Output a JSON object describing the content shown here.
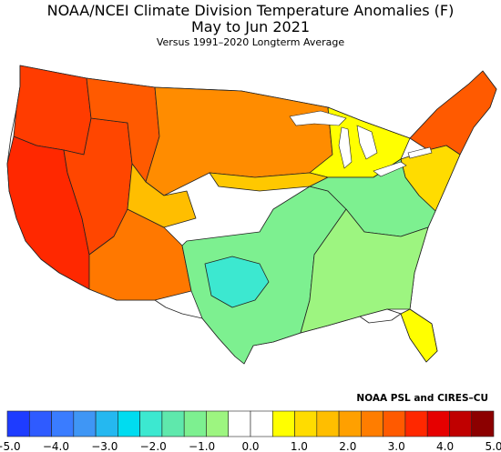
{
  "title": "NOAA/NCEI Climate Division Temperature Anomalies (F)",
  "period": "May to Jun 2021",
  "baseline": "Versus 1991–2020 Longterm Average",
  "credit": "NOAA PSL and CIRES–CU",
  "colorbar": {
    "min": -5.0,
    "max": 5.0,
    "step": 0.5,
    "tick_labels": [
      "−5.0",
      "−4.0",
      "−3.0",
      "−2.0",
      "−1.0",
      "0.0",
      "1.0",
      "2.0",
      "3.0",
      "4.0",
      "5.0"
    ],
    "colors": [
      "#1e3cff",
      "#2f5bff",
      "#3a7cff",
      "#3f96f5",
      "#25b8f0",
      "#00dcf0",
      "#3ce8d0",
      "#5fe8ac",
      "#7df090",
      "#9df580",
      "#ffffff",
      "#ffffff",
      "#ffff00",
      "#ffdc00",
      "#ffbe00",
      "#ffa000",
      "#ff7d00",
      "#ff5a00",
      "#ff2800",
      "#e60000",
      "#c00000",
      "#8c0000"
    ]
  },
  "regions": [
    {
      "name": "pacific-northwest",
      "anomaly": 4.0,
      "color": "#ff3c00"
    },
    {
      "name": "far-west",
      "anomaly": 4.0,
      "color": "#ff2800"
    },
    {
      "name": "great-basin",
      "anomaly": 3.5,
      "color": "#ff4600"
    },
    {
      "name": "northern-rockies",
      "anomaly": 3.0,
      "color": "#ff5a00"
    },
    {
      "name": "northern-plains",
      "anomaly": 2.0,
      "color": "#ff8c00"
    },
    {
      "name": "desert-southwest",
      "anomaly": 2.5,
      "color": "#ff7800"
    },
    {
      "name": "southern-rockies",
      "anomaly": 1.5,
      "color": "#ffbe00"
    },
    {
      "name": "upper-midwest",
      "anomaly": 1.5,
      "color": "#ffc800"
    },
    {
      "name": "central-plains-band",
      "anomaly": 0.0,
      "color": "#ffffff"
    },
    {
      "name": "south-central",
      "anomaly": -1.5,
      "color": "#7df090"
    },
    {
      "name": "west-texas",
      "anomaly": -2.5,
      "color": "#3ce8d0"
    },
    {
      "name": "southeast",
      "anomaly": -0.5,
      "color": "#9df580"
    },
    {
      "name": "ohio-valley",
      "anomaly": -1.0,
      "color": "#7df090"
    },
    {
      "name": "great-lakes",
      "anomaly": 0.5,
      "color": "#ffff00"
    },
    {
      "name": "mid-atlantic",
      "anomaly": 1.0,
      "color": "#ffdc00"
    },
    {
      "name": "new-england",
      "anomaly": 3.0,
      "color": "#ff5a00"
    },
    {
      "name": "florida",
      "anomaly": 0.5,
      "color": "#ffff00"
    },
    {
      "name": "texas-gulf-coast",
      "anomaly": 0.0,
      "color": "#ffffff"
    }
  ]
}
